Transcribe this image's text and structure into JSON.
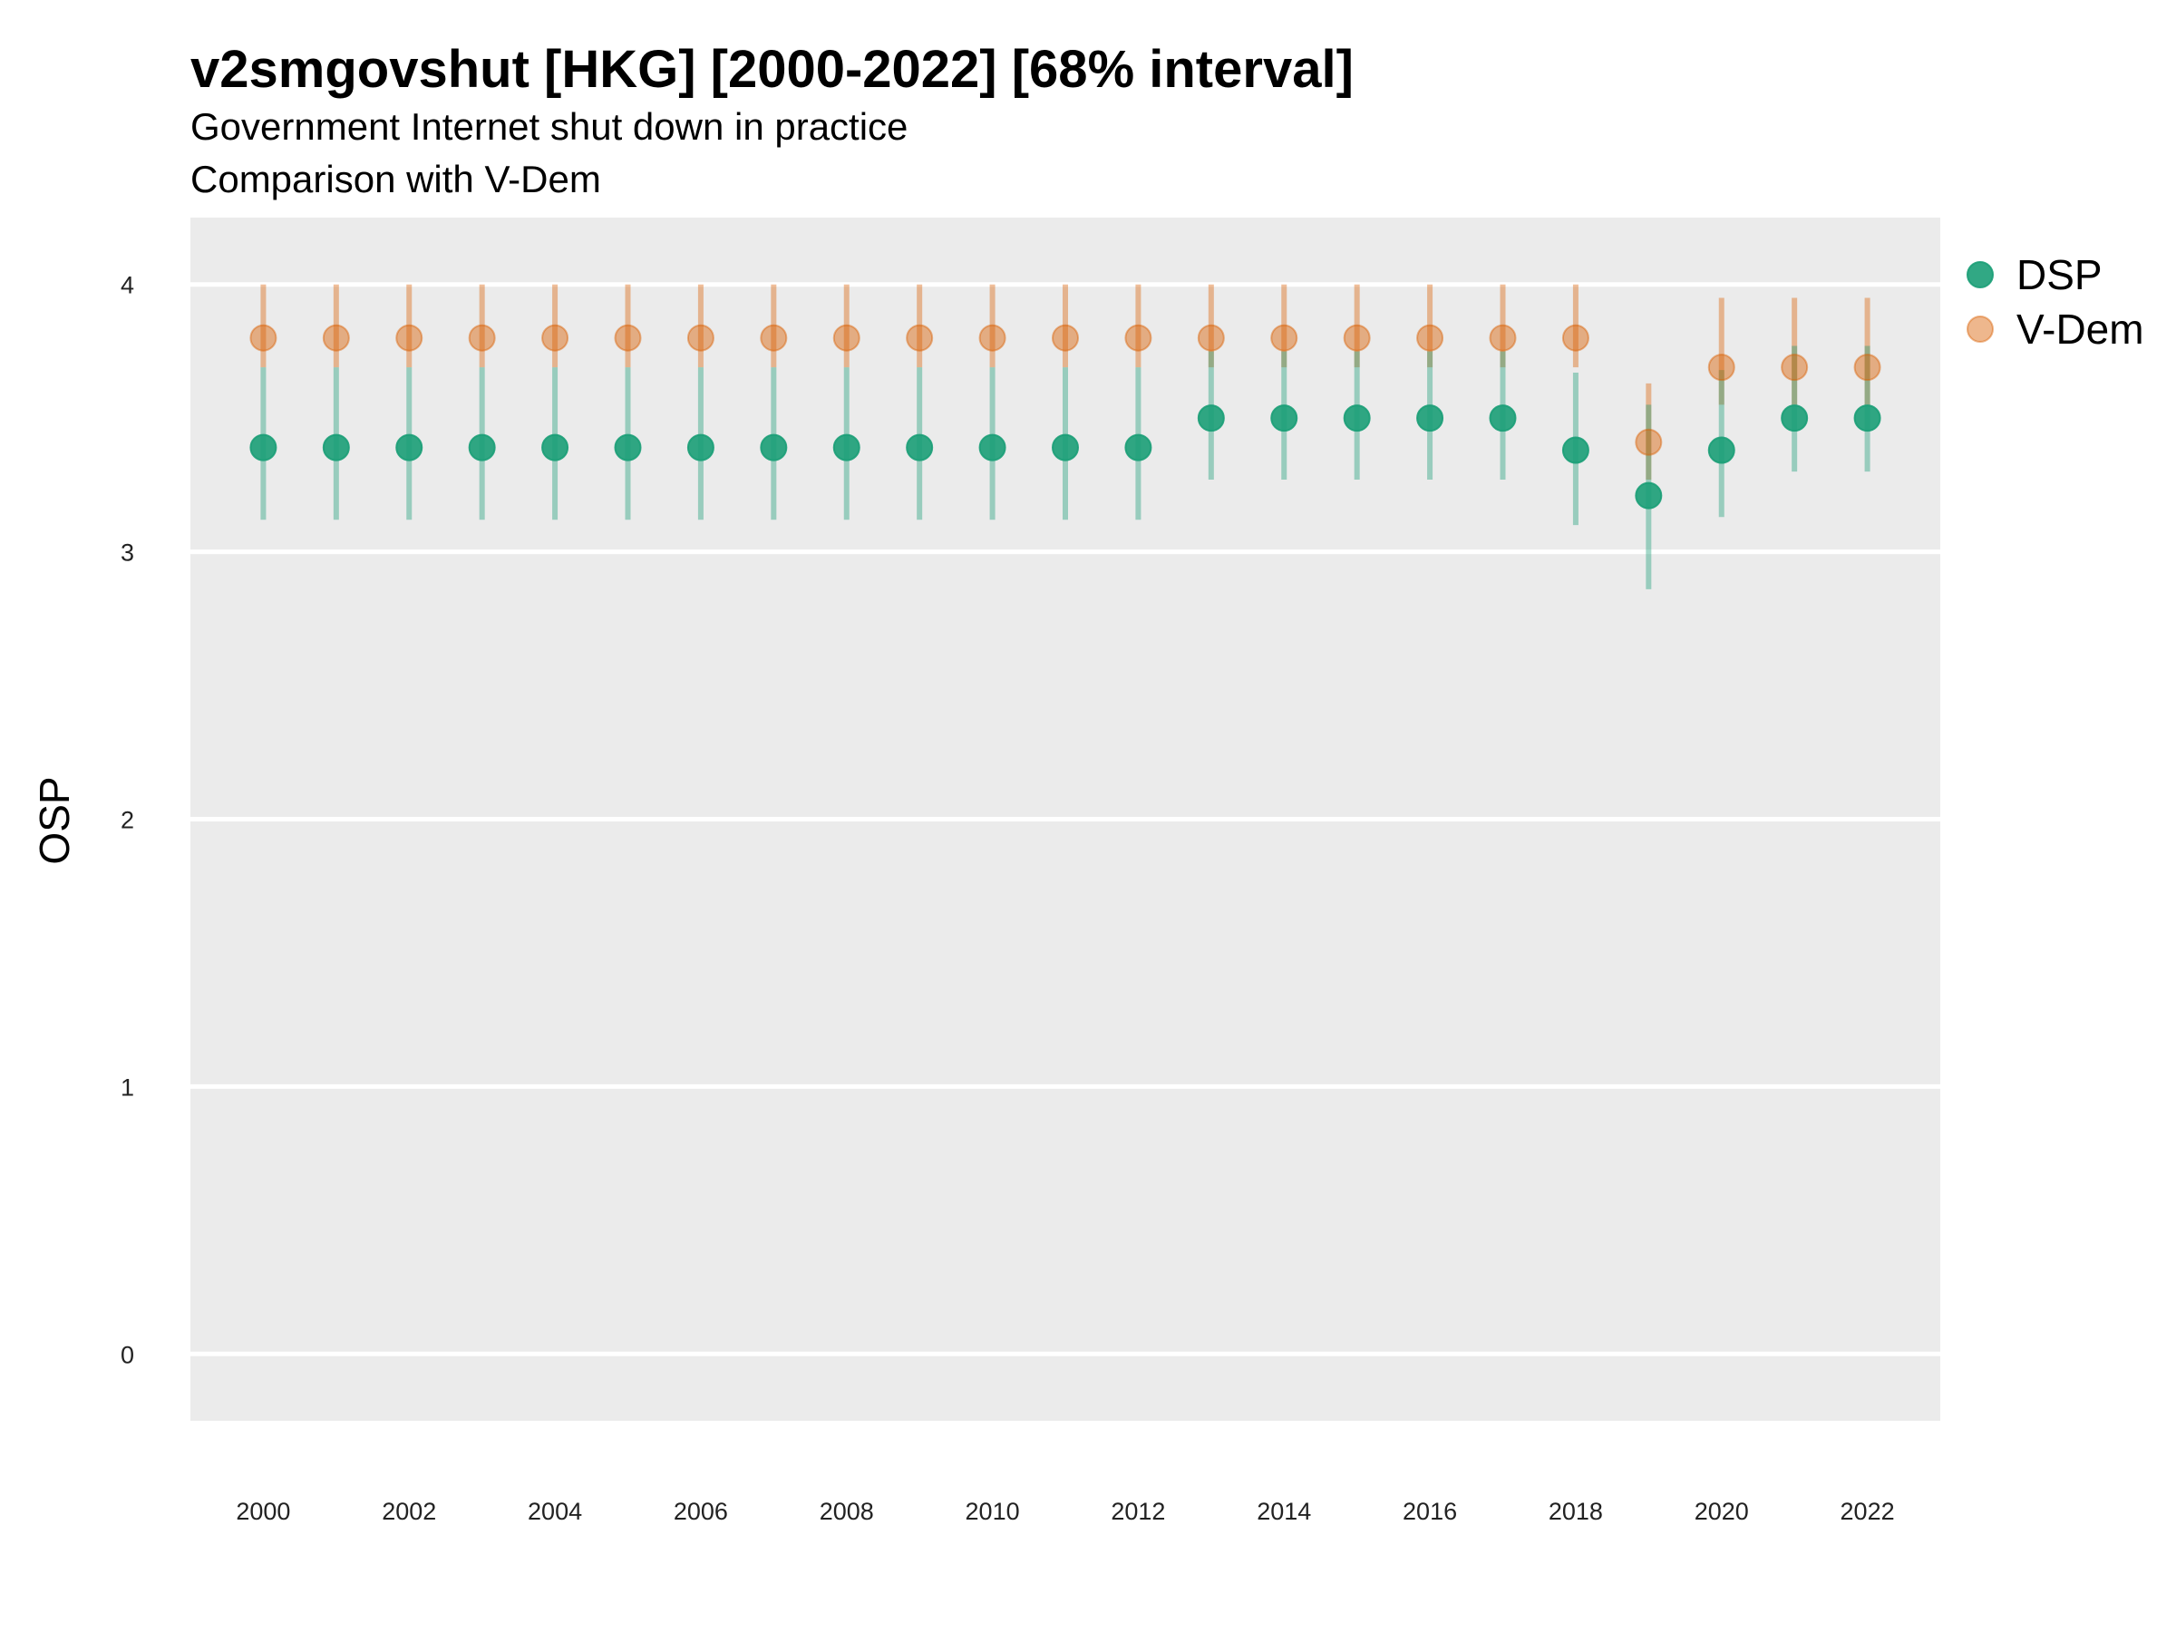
{
  "chart_data": {
    "type": "scatter",
    "title": "v2smgovshut [HKG] [2000-2022] [68% interval]",
    "subtitle": "Government Internet shut down in practice",
    "subtitle2": "Comparison with V-Dem",
    "xlabel": "",
    "ylabel": "OSP",
    "xlim": [
      1999.0,
      2023.0
    ],
    "ylim": [
      -0.25,
      4.25
    ],
    "x_ticks": [
      "2000",
      "2002",
      "2004",
      "2006",
      "2008",
      "2010",
      "2012",
      "2014",
      "2016",
      "2018",
      "2020",
      "2022"
    ],
    "y_ticks": [
      "0",
      "1",
      "2",
      "3",
      "4"
    ],
    "grid": true,
    "legend_position": "right",
    "x": [
      2000,
      2001,
      2002,
      2003,
      2004,
      2005,
      2006,
      2007,
      2008,
      2009,
      2010,
      2011,
      2012,
      2013,
      2014,
      2015,
      2016,
      2017,
      2018,
      2019,
      2020,
      2021,
      2022
    ],
    "series": [
      {
        "name": "DSP",
        "color": "#1b9e77",
        "values": [
          3.39,
          3.39,
          3.39,
          3.39,
          3.39,
          3.39,
          3.39,
          3.39,
          3.39,
          3.39,
          3.39,
          3.39,
          3.39,
          3.5,
          3.5,
          3.5,
          3.5,
          3.5,
          3.38,
          3.21,
          3.38,
          3.5,
          3.5
        ],
        "lower": [
          3.12,
          3.12,
          3.12,
          3.12,
          3.12,
          3.12,
          3.12,
          3.12,
          3.12,
          3.12,
          3.12,
          3.12,
          3.12,
          3.27,
          3.27,
          3.27,
          3.27,
          3.27,
          3.1,
          2.86,
          3.13,
          3.3,
          3.3
        ],
        "upper": [
          3.69,
          3.69,
          3.69,
          3.69,
          3.69,
          3.69,
          3.69,
          3.69,
          3.69,
          3.69,
          3.69,
          3.69,
          3.69,
          3.75,
          3.75,
          3.75,
          3.75,
          3.75,
          3.67,
          3.55,
          3.68,
          3.77,
          3.77
        ]
      },
      {
        "name": "V-Dem",
        "color": "#d95f02",
        "values": [
          3.8,
          3.8,
          3.8,
          3.8,
          3.8,
          3.8,
          3.8,
          3.8,
          3.8,
          3.8,
          3.8,
          3.8,
          3.8,
          3.8,
          3.8,
          3.8,
          3.8,
          3.8,
          3.8,
          3.41,
          3.69,
          3.69,
          3.69
        ],
        "lower": [
          3.69,
          3.69,
          3.69,
          3.69,
          3.69,
          3.69,
          3.69,
          3.69,
          3.69,
          3.69,
          3.69,
          3.69,
          3.69,
          3.69,
          3.69,
          3.69,
          3.69,
          3.69,
          3.69,
          3.27,
          3.55,
          3.55,
          3.55
        ],
        "upper": [
          4.0,
          4.0,
          4.0,
          4.0,
          4.0,
          4.0,
          4.0,
          4.0,
          4.0,
          4.0,
          4.0,
          4.0,
          4.0,
          4.0,
          4.0,
          4.0,
          4.0,
          4.0,
          4.0,
          3.63,
          3.95,
          3.95,
          3.95
        ]
      }
    ]
  }
}
